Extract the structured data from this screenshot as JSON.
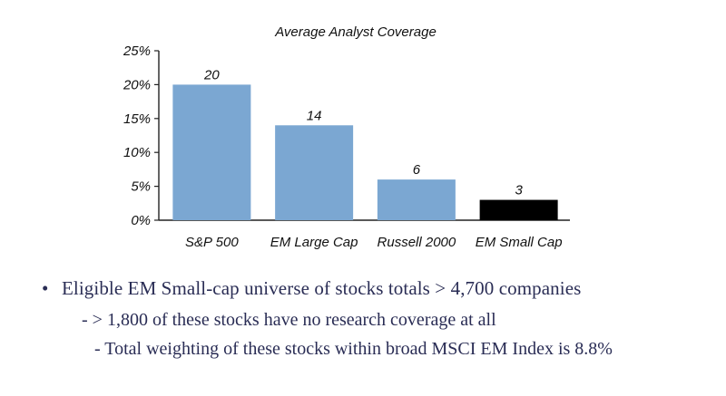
{
  "chart_data": {
    "type": "bar",
    "title": "Average Analyst Coverage",
    "categories": [
      "S&P 500",
      "EM Large Cap",
      "Russell 2000",
      "EM Small Cap"
    ],
    "values": [
      20,
      14,
      6,
      3
    ],
    "data_labels": [
      "20",
      "14",
      "6",
      "3"
    ],
    "colors": [
      "#7BA7D2",
      "#7BA7D2",
      "#7BA7D2",
      "#000000"
    ],
    "ylim": [
      0,
      25
    ],
    "yticks": [
      0,
      5,
      10,
      15,
      20,
      25
    ],
    "ytick_labels": [
      "0%",
      "5%",
      "10%",
      "15%",
      "20%",
      "25%"
    ],
    "grid": false,
    "legend": "none",
    "xlabel": "",
    "ylabel": ""
  },
  "notes": {
    "bullet_symbol": "•",
    "main": "Eligible EM Small-cap universe of stocks totals > 4,700 companies",
    "sub_1": "- > 1,800 of these stocks have no research coverage at all",
    "sub_2": "- Total weighting of these stocks within broad MSCI EM Index is 8.8%"
  },
  "colors": {
    "bar_default": "#7BA7D2",
    "bar_highlight": "#000000",
    "text_notes": "#2a2d55"
  }
}
